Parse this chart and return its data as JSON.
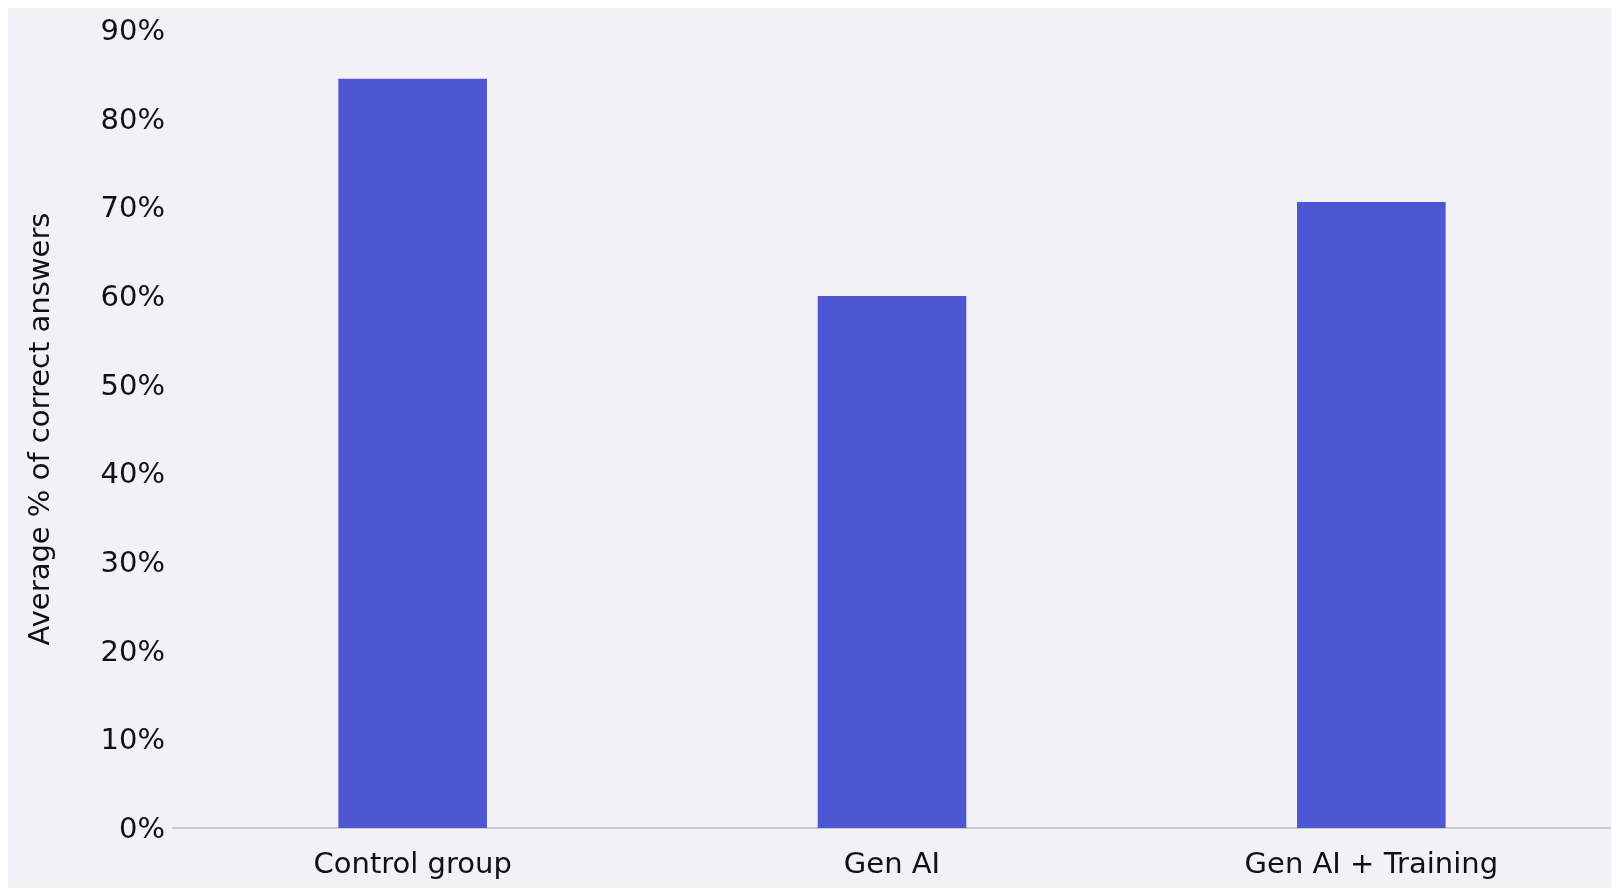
{
  "chart_data": {
    "type": "bar",
    "ylabel": "Average % of correct answers",
    "categories": [
      "Control group",
      "Gen AI",
      "Gen AI + Training"
    ],
    "values": [
      84.5,
      60,
      70.6
    ],
    "color": "#4f56d3",
    "ylim": [
      0,
      90
    ],
    "yticks": [
      {
        "value": 0,
        "label": "0%"
      },
      {
        "value": 10,
        "label": "10%"
      },
      {
        "value": 20,
        "label": "20%"
      },
      {
        "value": 30,
        "label": "30%"
      },
      {
        "value": 40,
        "label": "40%"
      },
      {
        "value": 50,
        "label": "50%"
      },
      {
        "value": 60,
        "label": "60%"
      },
      {
        "value": 70,
        "label": "70%"
      },
      {
        "value": 80,
        "label": "80%"
      },
      {
        "value": 90,
        "label": "90%"
      }
    ],
    "grid": false
  }
}
